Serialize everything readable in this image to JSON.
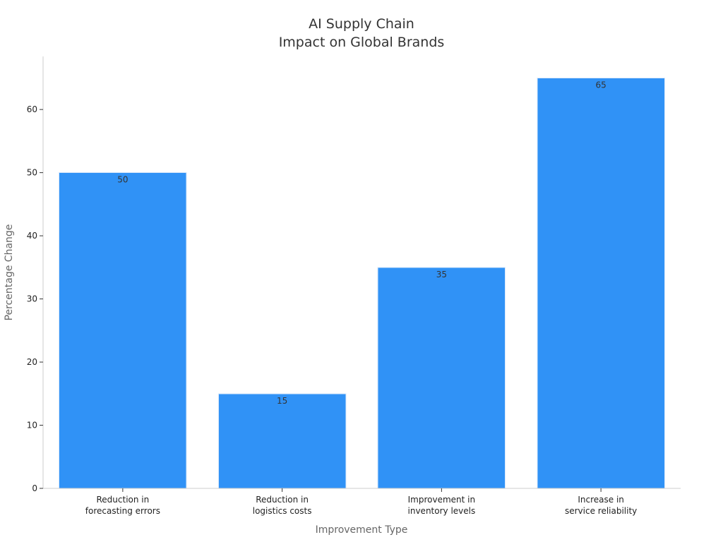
{
  "chart_data": {
    "type": "bar",
    "title_lines": [
      "AI Supply Chain",
      "Impact on Global Brands"
    ],
    "xlabel": "Improvement Type",
    "ylabel": "Percentage Change",
    "categories": [
      [
        "Reduction in",
        "forecasting errors"
      ],
      [
        "Reduction in",
        "logistics costs"
      ],
      [
        "Improvement in",
        "inventory levels"
      ],
      [
        "Increase in",
        "service reliability"
      ]
    ],
    "values": [
      50,
      15,
      35,
      65
    ],
    "data_labels": [
      "50",
      "15",
      "35",
      "65"
    ],
    "ylim": [
      0,
      68.4
    ],
    "yticks": [
      0,
      10,
      20,
      30,
      40,
      50,
      60
    ],
    "grid": false,
    "legend": "none",
    "colors": {
      "bar": "#3092f6",
      "bar_edge": "#d8e8fb",
      "axis": "#cccccc",
      "tick": "#333333"
    }
  }
}
